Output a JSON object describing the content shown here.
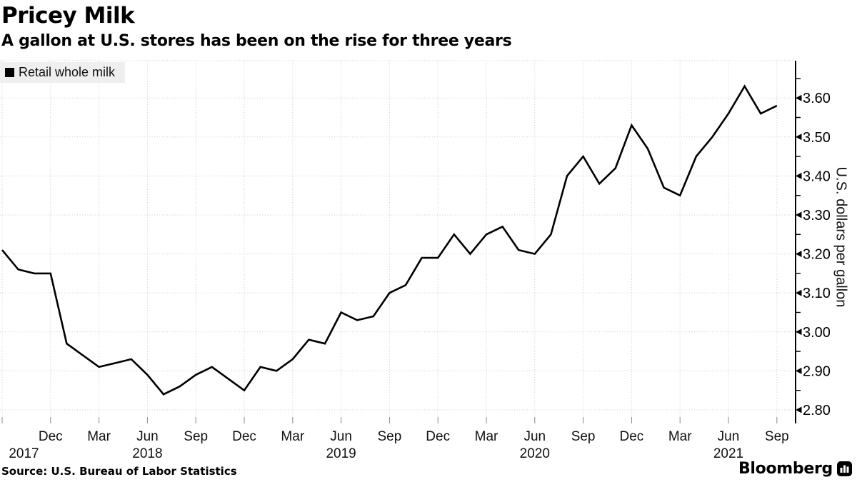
{
  "header": {
    "title": "Pricey Milk",
    "subtitle": "A gallon at U.S. stores has been on the rise for three years"
  },
  "legend": {
    "label": "Retail whole milk",
    "swatch_color": "#000000"
  },
  "y_axis": {
    "title": "U.S. dollars per gallon"
  },
  "x_axis": {
    "month_tick_labels": [
      "Dec",
      "Mar",
      "Jun",
      "Sep",
      "Dec",
      "Mar",
      "Jun",
      "Sep",
      "Dec",
      "Mar",
      "Jun",
      "Sep",
      "Dec",
      "Mar",
      "Jun",
      "Sep"
    ],
    "year_labels": [
      {
        "label": "2017",
        "month_index": 1.35
      },
      {
        "label": "2018",
        "month_index": 9
      },
      {
        "label": "2019",
        "month_index": 21
      },
      {
        "label": "2020",
        "month_index": 33
      },
      {
        "label": "2021",
        "month_index": 45
      }
    ]
  },
  "footer": {
    "source": "Source: U.S. Bureau of Labor Statistics",
    "brand": "Bloomberg"
  },
  "colors": {
    "line": "#000000",
    "grid": "#c9c9c9",
    "legend_bg": "#efefef",
    "axis": "#000000",
    "text": "#000000"
  },
  "chart_data": {
    "type": "line",
    "title": "Pricey Milk",
    "subtitle": "A gallon at U.S. stores has been on the rise for three years",
    "ylabel": "U.S. dollars per gallon",
    "ylim": [
      2.765,
      3.695
    ],
    "y_major_ticks": [
      2.8,
      2.9,
      3.0,
      3.1,
      3.2,
      3.3,
      3.4,
      3.5,
      3.6
    ],
    "y_minor_tick_step": 0.05,
    "grid": true,
    "legend_position": "top-left",
    "x_tick_every_months": 3,
    "x": [
      "2017-09",
      "2017-10",
      "2017-11",
      "2017-12",
      "2018-01",
      "2018-02",
      "2018-03",
      "2018-04",
      "2018-05",
      "2018-06",
      "2018-07",
      "2018-08",
      "2018-09",
      "2018-10",
      "2018-11",
      "2018-12",
      "2019-01",
      "2019-02",
      "2019-03",
      "2019-04",
      "2019-05",
      "2019-06",
      "2019-07",
      "2019-08",
      "2019-09",
      "2019-10",
      "2019-11",
      "2019-12",
      "2020-01",
      "2020-02",
      "2020-03",
      "2020-04",
      "2020-05",
      "2020-06",
      "2020-07",
      "2020-08",
      "2020-09",
      "2020-10",
      "2020-11",
      "2020-12",
      "2021-01",
      "2021-02",
      "2021-03",
      "2021-04",
      "2021-05",
      "2021-06",
      "2021-07",
      "2021-08",
      "2021-09"
    ],
    "series": [
      {
        "name": "Retail whole milk",
        "color": "#000000",
        "values": [
          3.21,
          3.16,
          3.15,
          3.15,
          2.97,
          2.94,
          2.91,
          2.92,
          2.93,
          2.89,
          2.84,
          2.86,
          2.89,
          2.91,
          2.88,
          2.85,
          2.91,
          2.9,
          2.93,
          2.98,
          2.97,
          3.05,
          3.03,
          3.04,
          3.1,
          3.12,
          3.19,
          3.19,
          3.25,
          3.2,
          3.25,
          3.27,
          3.21,
          3.2,
          3.25,
          3.4,
          3.45,
          3.38,
          3.42,
          3.53,
          3.47,
          3.37,
          3.35,
          3.45,
          3.5,
          3.56,
          3.63,
          3.56,
          3.58
        ]
      }
    ]
  }
}
